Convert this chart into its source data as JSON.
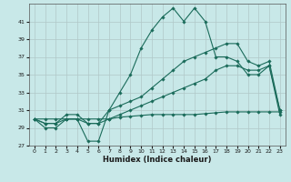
{
  "xlabel": "Humidex (Indice chaleur)",
  "background_color": "#c8e8e8",
  "grid_color": "#b0c8c8",
  "line_color": "#1a6b5a",
  "x_values": [
    0,
    1,
    2,
    3,
    4,
    5,
    6,
    7,
    8,
    9,
    10,
    11,
    12,
    13,
    14,
    15,
    16,
    17,
    18,
    19,
    20,
    21,
    22,
    23
  ],
  "series": [
    [
      30,
      29,
      29,
      30,
      30,
      27.5,
      27.5,
      31,
      33,
      35,
      38,
      40,
      41.5,
      42.5,
      41,
      42.5,
      41,
      37,
      37,
      36.5,
      35,
      35,
      36,
      30.5
    ],
    [
      30,
      29.5,
      29.5,
      30.5,
      30.5,
      29.5,
      29.5,
      31,
      31.5,
      32,
      32.5,
      33.5,
      34.5,
      35.5,
      36.5,
      37,
      37.5,
      38,
      38.5,
      38.5,
      36.5,
      36,
      36.5,
      31
    ],
    [
      30,
      29.5,
      29.5,
      30,
      30,
      29.5,
      29.5,
      30,
      30.5,
      31,
      31.5,
      32,
      32.5,
      33,
      33.5,
      34,
      34.5,
      35.5,
      36,
      36,
      35.5,
      35.5,
      36,
      31
    ],
    [
      30,
      30,
      30,
      30,
      30,
      30,
      30,
      30,
      30.2,
      30.3,
      30.4,
      30.5,
      30.5,
      30.5,
      30.5,
      30.5,
      30.6,
      30.7,
      30.8,
      30.8,
      30.8,
      30.8,
      30.8,
      30.8
    ]
  ],
  "ylim": [
    27,
    43
  ],
  "xlim": [
    -0.5,
    23.5
  ],
  "yticks": [
    27,
    29,
    31,
    33,
    35,
    37,
    39,
    41
  ],
  "xticks": [
    0,
    1,
    2,
    3,
    4,
    5,
    6,
    7,
    8,
    9,
    10,
    11,
    12,
    13,
    14,
    15,
    16,
    17,
    18,
    19,
    20,
    21,
    22,
    23
  ]
}
